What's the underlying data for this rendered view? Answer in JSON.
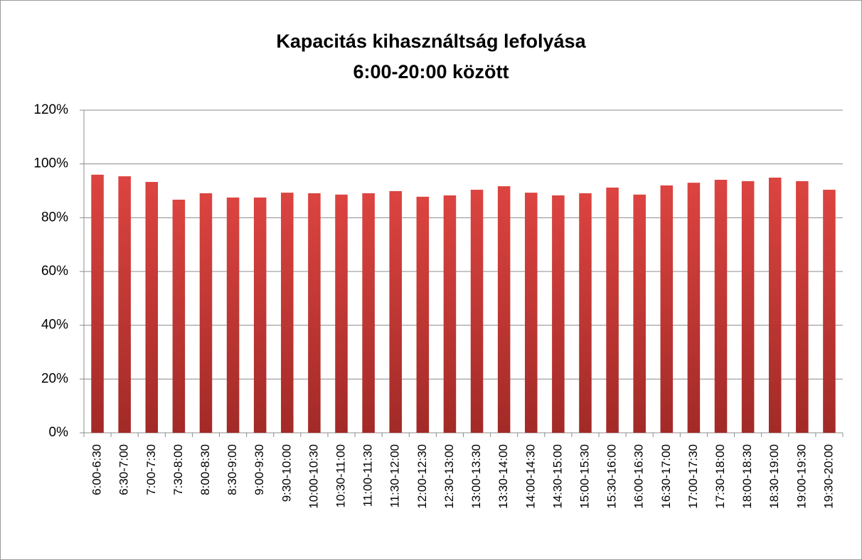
{
  "chart_data": {
    "type": "bar",
    "title": [
      "Kapacitás kihasználtság lefolyása",
      "6:00-20:00 között"
    ],
    "categories": [
      "6:00-6:30",
      "6:30-7:00",
      "7:00-7:30",
      "7:30-8:00",
      "8:00-8:30",
      "8:30-9:00",
      "9:00-9:30",
      "9:30-10:00",
      "10:00-10:30",
      "10:30-11:00",
      "11:00-11:30",
      "11:30-12:00",
      "12:00-12:30",
      "12:30-13:00",
      "13:00-13:30",
      "13:30-14:00",
      "14:00-14:30",
      "14:30-15:00",
      "15:00-15:30",
      "15:30-16:00",
      "16:00-16:30",
      "16:30-17:00",
      "17:00-17:30",
      "17:30-18:00",
      "18:00-18:30",
      "18:30-19:00",
      "19:00-19:30",
      "19:30-20:00"
    ],
    "values": [
      96.0,
      95.4,
      93.3,
      86.7,
      89.1,
      87.5,
      87.5,
      89.3,
      89.1,
      88.6,
      89.1,
      89.9,
      87.8,
      88.3,
      90.4,
      91.7,
      89.3,
      88.3,
      89.1,
      91.2,
      88.6,
      92.0,
      93.0,
      94.1,
      93.6,
      94.9,
      93.6,
      90.4
    ],
    "color": "#c0312e",
    "ylim": [
      0,
      120
    ],
    "yticks": [
      {
        "value": 0,
        "label": "0%"
      },
      {
        "value": 20,
        "label": "20%"
      },
      {
        "value": 40,
        "label": "40%"
      },
      {
        "value": 60,
        "label": "60%"
      },
      {
        "value": 80,
        "label": "80%"
      },
      {
        "value": 100,
        "label": "100%"
      },
      {
        "value": 120,
        "label": "120%"
      }
    ],
    "grid": true
  }
}
